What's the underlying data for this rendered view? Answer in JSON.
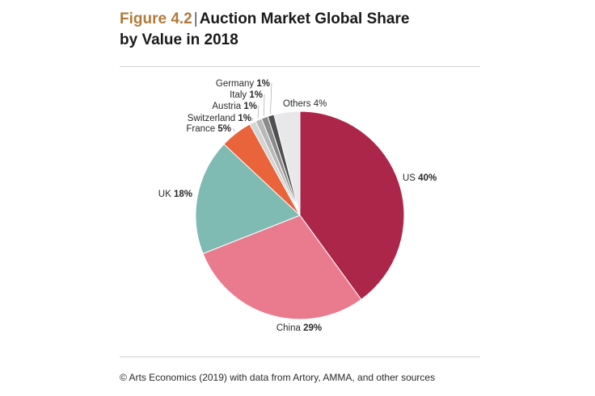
{
  "header": {
    "figure_label": "Figure 4.2",
    "separator": "|",
    "title_line1": "Auction Market Global Share",
    "title_line2": "by Value in 2018"
  },
  "chart_data": {
    "type": "pie",
    "title": "Auction Market Global Share by Value in 2018",
    "unit": "%",
    "slices": [
      {
        "name": "US",
        "value": 40,
        "value_label": "40%",
        "color": "#ac2649"
      },
      {
        "name": "China",
        "value": 29,
        "value_label": "29%",
        "color": "#ea7b8f"
      },
      {
        "name": "UK",
        "value": 18,
        "value_label": "18%",
        "color": "#7fbab3"
      },
      {
        "name": "France",
        "value": 5,
        "value_label": "5%",
        "color": "#e9633b"
      },
      {
        "name": "Switzerland",
        "value": 1,
        "value_label": "1%",
        "color": "#d4d4d4"
      },
      {
        "name": "Austria",
        "value": 1,
        "value_label": "1%",
        "color": "#b8b8b8"
      },
      {
        "name": "Italy",
        "value": 1,
        "value_label": "1%",
        "color": "#8a8a8a"
      },
      {
        "name": "Germany",
        "value": 1,
        "value_label": "1%",
        "color": "#505050"
      },
      {
        "name": "Others",
        "value": 4,
        "value_label": "4%",
        "color": "#e8e8ea"
      }
    ]
  },
  "footer": {
    "source": "© Arts Economics (2019) with data from Artory, AMMA, and other sources"
  }
}
